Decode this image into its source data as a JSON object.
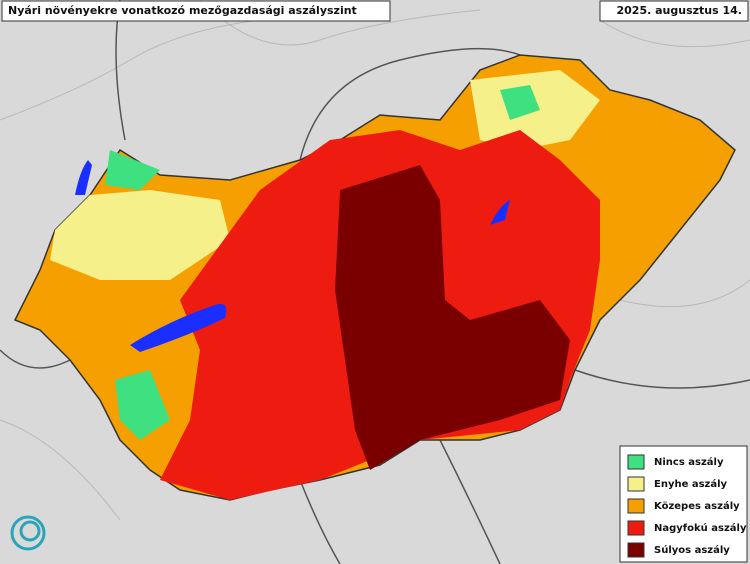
{
  "header": {
    "title": "Nyári növényekre vonatkozó mezőgazdasági aszályszint",
    "date": "2025. augusztus 14."
  },
  "legend": {
    "items": [
      {
        "label": "Nincs aszály",
        "color": "#3fe07f"
      },
      {
        "label": "Enyhe aszály",
        "color": "#f6f08a"
      },
      {
        "label": "Közepes aszály",
        "color": "#f5a000"
      },
      {
        "label": "Nagyfokú aszály",
        "color": "#ee1c10"
      },
      {
        "label": "Súlyos aszály",
        "color": "#7a0000"
      }
    ]
  }
}
